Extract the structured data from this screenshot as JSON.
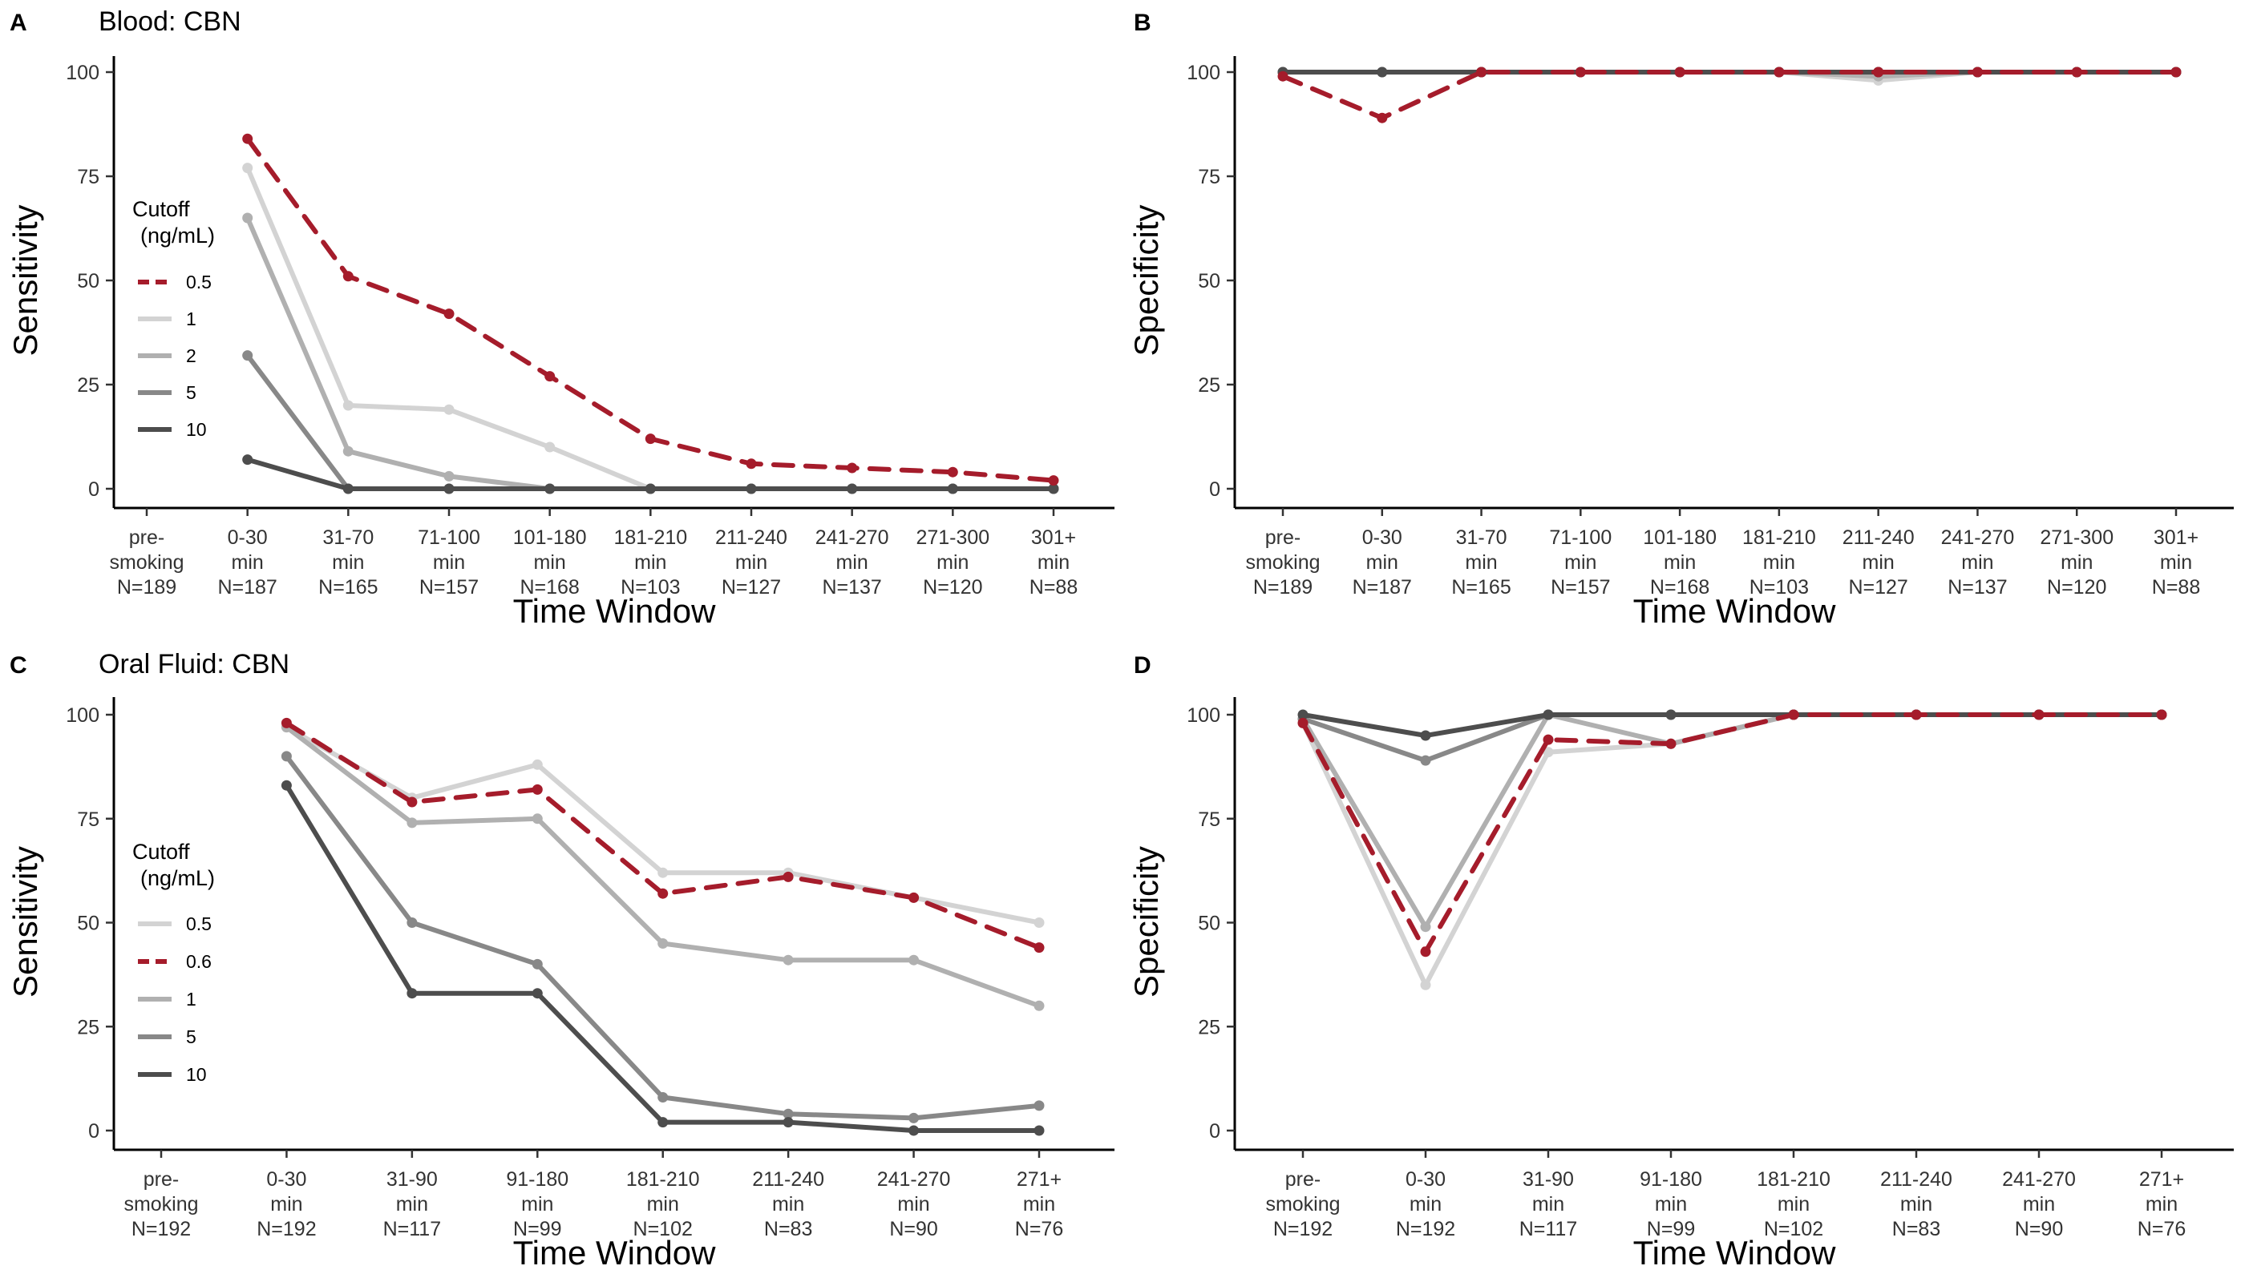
{
  "chart_data": [
    {
      "panel": "A",
      "type": "line",
      "title": "Blood: CBN",
      "xlabel": "Time Window",
      "ylabel": "Sensitivity",
      "ylim": [
        0,
        100
      ],
      "yticks": [
        0,
        25,
        50,
        75,
        100
      ],
      "grid": false,
      "legend": {
        "title": [
          "Cutoff",
          "(ng/mL)"
        ],
        "placement": "left-inside"
      },
      "categories": [
        [
          "pre-",
          "smoking",
          "N=189"
        ],
        [
          "0-30",
          "min",
          "N=187"
        ],
        [
          "31-70",
          "min",
          "N=165"
        ],
        [
          "71-100",
          "min",
          "N=157"
        ],
        [
          "101-180",
          "min",
          "N=168"
        ],
        [
          "181-210",
          "min",
          "N=103"
        ],
        [
          "211-240",
          "min",
          "N=127"
        ],
        [
          "241-270",
          "min",
          "N=137"
        ],
        [
          "271-300",
          "min",
          "N=120"
        ],
        [
          "301+",
          "min",
          "N=88"
        ]
      ],
      "series": [
        {
          "name": "0.5",
          "color": "#A51C2B",
          "dashed": true,
          "values": [
            null,
            84,
            51,
            42,
            27,
            12,
            6,
            5,
            4,
            2
          ]
        },
        {
          "name": "1",
          "color": "#D3D3D3",
          "dashed": false,
          "values": [
            null,
            77,
            20,
            19,
            10,
            0,
            0,
            0,
            0,
            0
          ]
        },
        {
          "name": "2",
          "color": "#B0B0B0",
          "dashed": false,
          "values": [
            null,
            65,
            9,
            3,
            0,
            0,
            0,
            0,
            0,
            0
          ]
        },
        {
          "name": "5",
          "color": "#888888",
          "dashed": false,
          "values": [
            null,
            32,
            0,
            0,
            0,
            0,
            0,
            0,
            0,
            0
          ]
        },
        {
          "name": "10",
          "color": "#4D4D4D",
          "dashed": false,
          "values": [
            null,
            7,
            0,
            0,
            0,
            0,
            0,
            0,
            0,
            0
          ]
        }
      ]
    },
    {
      "panel": "B",
      "type": "line",
      "title": "",
      "xlabel": "Time Window",
      "ylabel": "Specificity",
      "ylim": [
        0,
        100
      ],
      "yticks": [
        0,
        25,
        50,
        75,
        100
      ],
      "grid": false,
      "legend": null,
      "categories": [
        [
          "pre-",
          "smoking",
          "N=189"
        ],
        [
          "0-30",
          "min",
          "N=187"
        ],
        [
          "31-70",
          "min",
          "N=165"
        ],
        [
          "71-100",
          "min",
          "N=157"
        ],
        [
          "101-180",
          "min",
          "N=168"
        ],
        [
          "181-210",
          "min",
          "N=103"
        ],
        [
          "211-240",
          "min",
          "N=127"
        ],
        [
          "241-270",
          "min",
          "N=137"
        ],
        [
          "271-300",
          "min",
          "N=120"
        ],
        [
          "301+",
          "min",
          "N=88"
        ]
      ],
      "series": [
        {
          "name": "0.5",
          "color": "#A51C2B",
          "dashed": true,
          "values": [
            99,
            89,
            100,
            100,
            100,
            100,
            100,
            100,
            100,
            100
          ]
        },
        {
          "name": "1",
          "color": "#D3D3D3",
          "dashed": false,
          "values": [
            100,
            100,
            100,
            100,
            100,
            100,
            98,
            100,
            100,
            100
          ]
        },
        {
          "name": "2",
          "color": "#B0B0B0",
          "dashed": false,
          "values": [
            100,
            100,
            100,
            100,
            100,
            100,
            99,
            100,
            100,
            100
          ]
        },
        {
          "name": "5",
          "color": "#888888",
          "dashed": false,
          "values": [
            100,
            100,
            100,
            100,
            100,
            100,
            100,
            100,
            100,
            100
          ]
        },
        {
          "name": "10",
          "color": "#4D4D4D",
          "dashed": false,
          "values": [
            100,
            100,
            100,
            100,
            100,
            100,
            100,
            100,
            100,
            100
          ]
        }
      ]
    },
    {
      "panel": "C",
      "type": "line",
      "title": "Oral Fluid: CBN",
      "xlabel": "Time Window",
      "ylabel": "Sensitivity",
      "ylim": [
        0,
        100
      ],
      "yticks": [
        0,
        25,
        50,
        75,
        100
      ],
      "grid": false,
      "legend": {
        "title": [
          "Cutoff",
          "(ng/mL)"
        ],
        "placement": "left-inside"
      },
      "categories": [
        [
          "pre-",
          "smoking",
          "N=192"
        ],
        [
          "0-30",
          "min",
          "N=192"
        ],
        [
          "31-90",
          "min",
          "N=117"
        ],
        [
          "91-180",
          "min",
          "N=99"
        ],
        [
          "181-210",
          "min",
          "N=102"
        ],
        [
          "211-240",
          "min",
          "N=83"
        ],
        [
          "241-270",
          "min",
          "N=90"
        ],
        [
          "271+",
          "min",
          "N=76"
        ]
      ],
      "series": [
        {
          "name": "0.5",
          "color": "#D3D3D3",
          "dashed": false,
          "values": [
            null,
            97,
            80,
            88,
            62,
            62,
            56,
            50
          ]
        },
        {
          "name": "0.6",
          "color": "#A51C2B",
          "dashed": true,
          "values": [
            null,
            98,
            79,
            82,
            57,
            61,
            56,
            44
          ]
        },
        {
          "name": "1",
          "color": "#B0B0B0",
          "dashed": false,
          "values": [
            null,
            97,
            74,
            75,
            45,
            41,
            41,
            30
          ]
        },
        {
          "name": "5",
          "color": "#888888",
          "dashed": false,
          "values": [
            null,
            90,
            50,
            40,
            8,
            4,
            3,
            6
          ]
        },
        {
          "name": "10",
          "color": "#4D4D4D",
          "dashed": false,
          "values": [
            null,
            83,
            33,
            33,
            2,
            2,
            0,
            0
          ]
        }
      ]
    },
    {
      "panel": "D",
      "type": "line",
      "title": "",
      "xlabel": "Time Window",
      "ylabel": "Specificity",
      "ylim": [
        0,
        100
      ],
      "yticks": [
        0,
        25,
        50,
        75,
        100
      ],
      "grid": false,
      "legend": null,
      "categories": [
        [
          "pre-",
          "smoking",
          "N=192"
        ],
        [
          "0-30",
          "min",
          "N=192"
        ],
        [
          "31-90",
          "min",
          "N=117"
        ],
        [
          "91-180",
          "min",
          "N=99"
        ],
        [
          "181-210",
          "min",
          "N=102"
        ],
        [
          "211-240",
          "min",
          "N=83"
        ],
        [
          "241-270",
          "min",
          "N=90"
        ],
        [
          "271+",
          "min",
          "N=76"
        ]
      ],
      "series": [
        {
          "name": "0.5",
          "color": "#D3D3D3",
          "dashed": false,
          "values": [
            98,
            35,
            91,
            93,
            100,
            100,
            100,
            100
          ]
        },
        {
          "name": "0.6",
          "color": "#A51C2B",
          "dashed": true,
          "values": [
            98,
            43,
            94,
            93,
            100,
            100,
            100,
            100
          ]
        },
        {
          "name": "1",
          "color": "#B0B0B0",
          "dashed": false,
          "values": [
            99,
            49,
            100,
            93,
            100,
            100,
            100,
            100
          ]
        },
        {
          "name": "5",
          "color": "#888888",
          "dashed": false,
          "values": [
            99,
            89,
            100,
            100,
            100,
            100,
            100,
            100
          ]
        },
        {
          "name": "10",
          "color": "#4D4D4D",
          "dashed": false,
          "values": [
            100,
            95,
            100,
            100,
            100,
            100,
            100,
            100
          ]
        }
      ]
    }
  ]
}
